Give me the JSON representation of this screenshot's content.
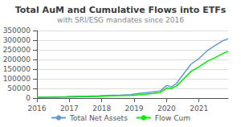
{
  "chart_data": {
    "type": "line",
    "title": "Total AuM and Cumulative Flows into ETFs",
    "subtitle": "with SRI/ESG mandates since 2016",
    "x": [
      2016.0,
      2016.3,
      2016.6,
      2016.9,
      2017.0,
      2017.3,
      2017.6,
      2017.9,
      2018.0,
      2018.3,
      2018.6,
      2018.9,
      2019.0,
      2019.2,
      2019.4,
      2019.6,
      2019.8,
      2020.0,
      2020.15,
      2020.3,
      2020.5,
      2020.75,
      2021.0,
      2021.25,
      2021.5,
      2021.75,
      2021.9
    ],
    "series": [
      {
        "name": "Total Net Assets",
        "color": "#6699cc",
        "values": [
          4000,
          5000,
          6000,
          7000,
          8000,
          9000,
          10000,
          11500,
          13000,
          14500,
          16000,
          18000,
          21000,
          25000,
          28000,
          32000,
          36000,
          65000,
          58000,
          75000,
          120000,
          175000,
          205000,
          245000,
          272000,
          298000,
          308000
        ]
      },
      {
        "name": "Flow Cum",
        "color": "#00ee00",
        "values": [
          3000,
          3800,
          4500,
          5000,
          5500,
          6500,
          7500,
          8500,
          9500,
          11000,
          12500,
          13500,
          15000,
          18000,
          21000,
          24000,
          28000,
          52000,
          50000,
          62000,
          95000,
          138000,
          162000,
          190000,
          210000,
          232000,
          242000
        ]
      }
    ],
    "xlim": [
      2016.0,
      2021.9
    ],
    "xticks": [
      2016,
      2017,
      2018,
      2019,
      2020,
      2021
    ],
    "ylim": [
      0,
      350000
    ],
    "yticks": [
      0,
      50000,
      100000,
      150000,
      200000,
      250000,
      300000,
      350000
    ],
    "grid": true,
    "legend": "bottom"
  }
}
